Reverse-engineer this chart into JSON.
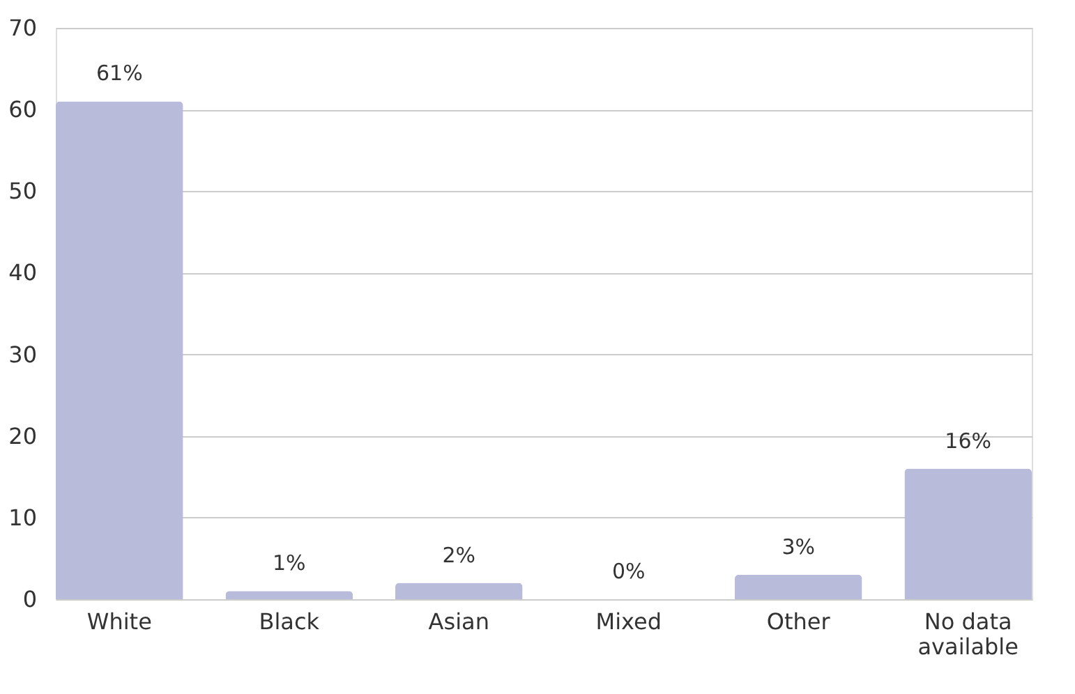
{
  "chart_data": {
    "type": "bar",
    "categories": [
      "White",
      "Black",
      "Asian",
      "Mixed",
      "Other",
      "No data available"
    ],
    "values": [
      61,
      1,
      2,
      0,
      3,
      16
    ],
    "value_labels": [
      "61%",
      "1%",
      "2%",
      "0%",
      "3%",
      "16%"
    ],
    "color": "#b8bbd9",
    "ylim": [
      0,
      70
    ],
    "yticks": [
      0,
      10,
      20,
      30,
      40,
      50,
      60,
      70
    ],
    "grid": "y"
  }
}
